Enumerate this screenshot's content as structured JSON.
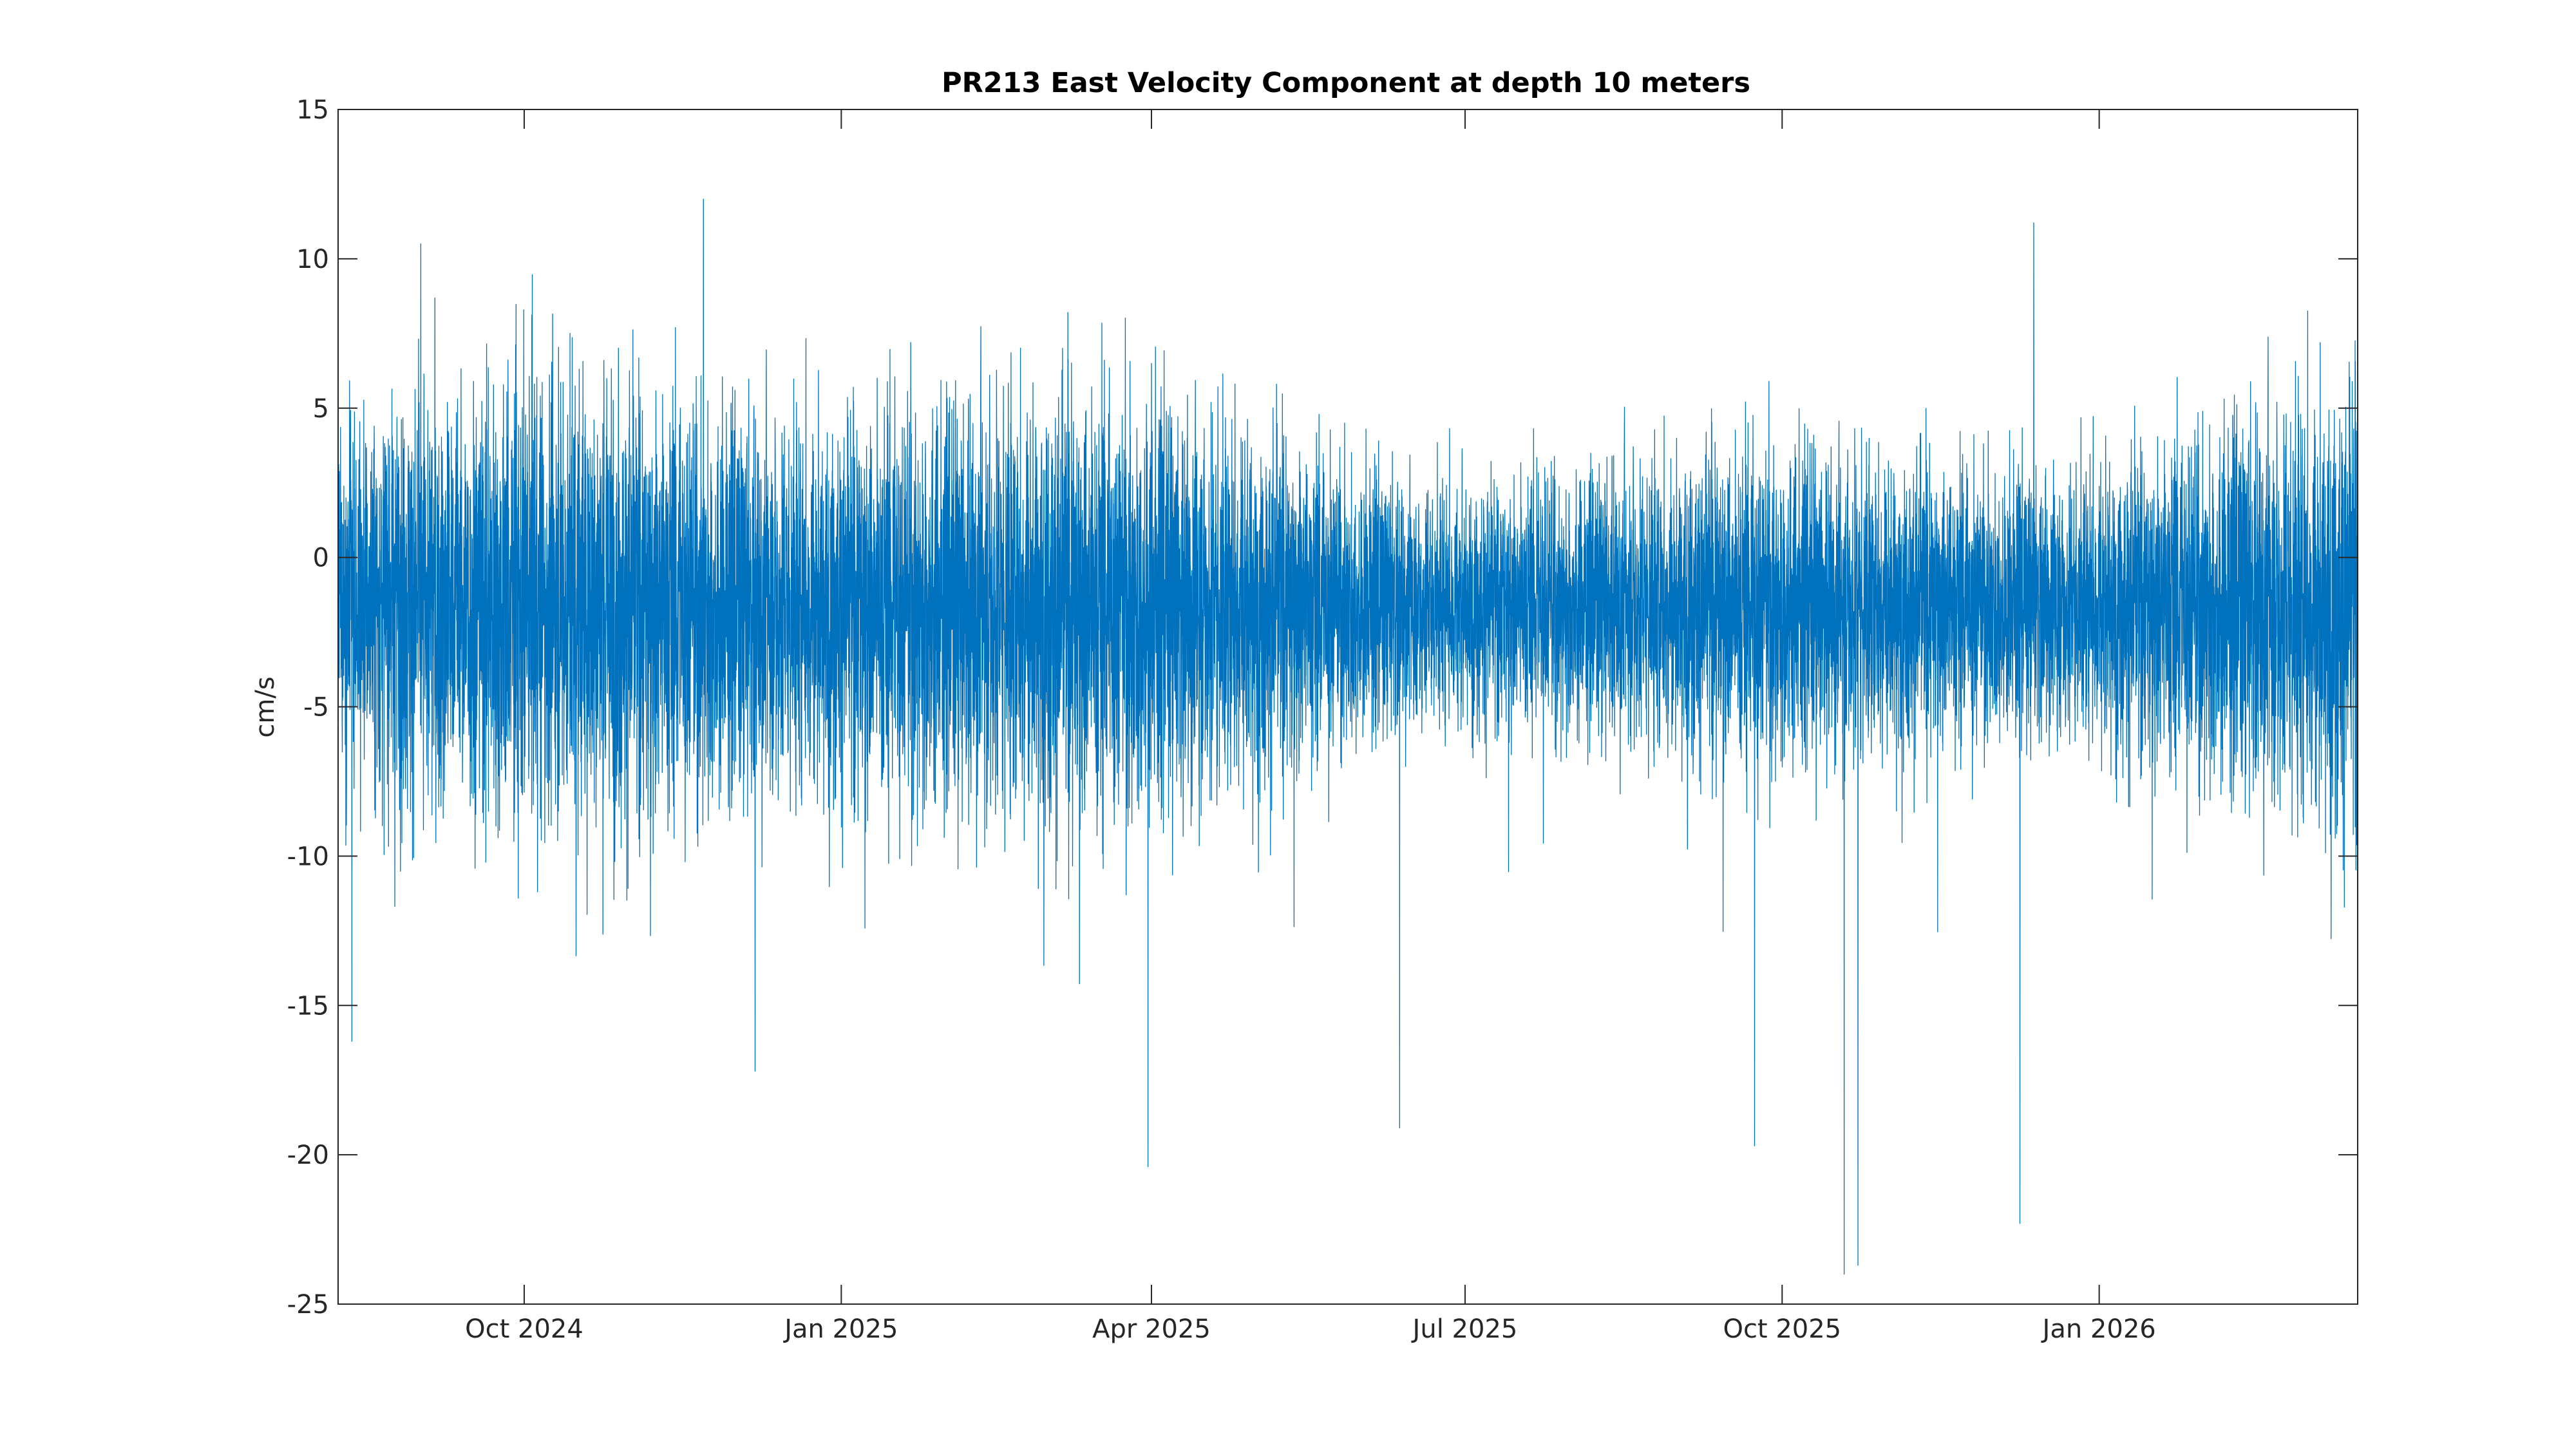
{
  "chart_data": {
    "type": "line",
    "title": "PR213 East Velocity Component at depth 10 meters",
    "xlabel": "",
    "ylabel": "cm/s",
    "x_axis_type": "date",
    "xlim": [
      "2024-08-08",
      "2026-03-17"
    ],
    "ylim": [
      -25,
      15
    ],
    "grid": false,
    "legend": "none",
    "line_color": "#0072BD",
    "yticks": [
      -25,
      -20,
      -15,
      -10,
      -5,
      0,
      5,
      10,
      15
    ],
    "ytick_labels": [
      "-25",
      "-20",
      "-15",
      "-10",
      "-5",
      "0",
      "5",
      "10",
      "15"
    ],
    "xticks": [
      "2024-10-01",
      "2025-01-01",
      "2025-04-01",
      "2025-07-01",
      "2025-10-01",
      "2026-01-01"
    ],
    "xtick_labels": [
      "Oct 2024",
      "Jan 2025",
      "Apr 2025",
      "Jul 2025",
      "Oct 2025",
      "Jan 2026"
    ],
    "series": [
      {
        "mean": -1.5,
        "typical_range": [
          -8,
          5
        ],
        "notable_extremes": [
          {
            "x": "2024-11-22",
            "y": 12.0
          },
          {
            "x": "2024-08-12",
            "y": -16.2
          },
          {
            "x": "2024-12-07",
            "y": -17.2
          },
          {
            "x": "2025-03-31",
            "y": -20.4
          },
          {
            "x": "2025-06-12",
            "y": -19.1
          },
          {
            "x": "2025-09-23",
            "y": -19.7
          },
          {
            "x": "2025-10-19",
            "y": -24.0
          },
          {
            "x": "2025-10-23",
            "y": -23.7
          },
          {
            "x": "2025-12-09",
            "y": -22.3
          },
          {
            "x": "2025-12-13",
            "y": 11.2
          }
        ]
      }
    ]
  }
}
